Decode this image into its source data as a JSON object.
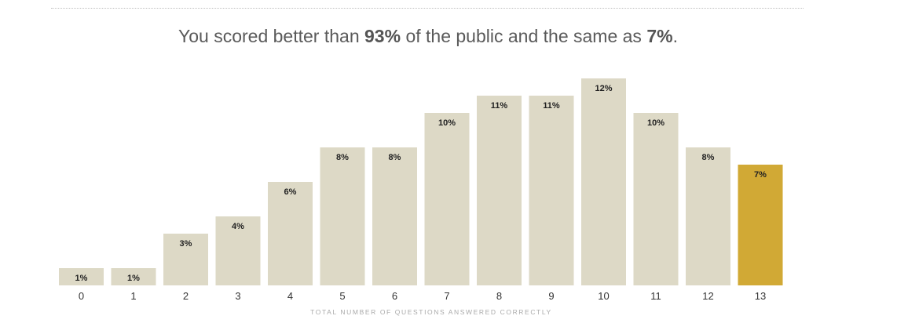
{
  "headline": {
    "prefix": "You scored better than ",
    "better_than": "93%",
    "middle": " of the public and the same as ",
    "same_as": "7%",
    "suffix": "."
  },
  "chart_data": {
    "type": "bar",
    "categories": [
      "0",
      "1",
      "2",
      "3",
      "4",
      "5",
      "6",
      "7",
      "8",
      "9",
      "10",
      "11",
      "12",
      "13"
    ],
    "values": [
      1,
      1,
      3,
      4,
      6,
      8,
      8,
      10,
      11,
      11,
      12,
      10,
      8,
      7
    ],
    "value_labels": [
      "1%",
      "1%",
      "3%",
      "4%",
      "6%",
      "8%",
      "8%",
      "10%",
      "11%",
      "11%",
      "12%",
      "10%",
      "8%",
      "7%"
    ],
    "xlabel": "TOTAL NUMBER OF QUESTIONS ANSWERED CORRECTLY",
    "ylabel": "",
    "ylim": [
      0,
      12
    ],
    "grid": false,
    "highlight_category": "13",
    "colors": {
      "bar": "#ddd9c6",
      "highlight": "#d1a935"
    }
  }
}
